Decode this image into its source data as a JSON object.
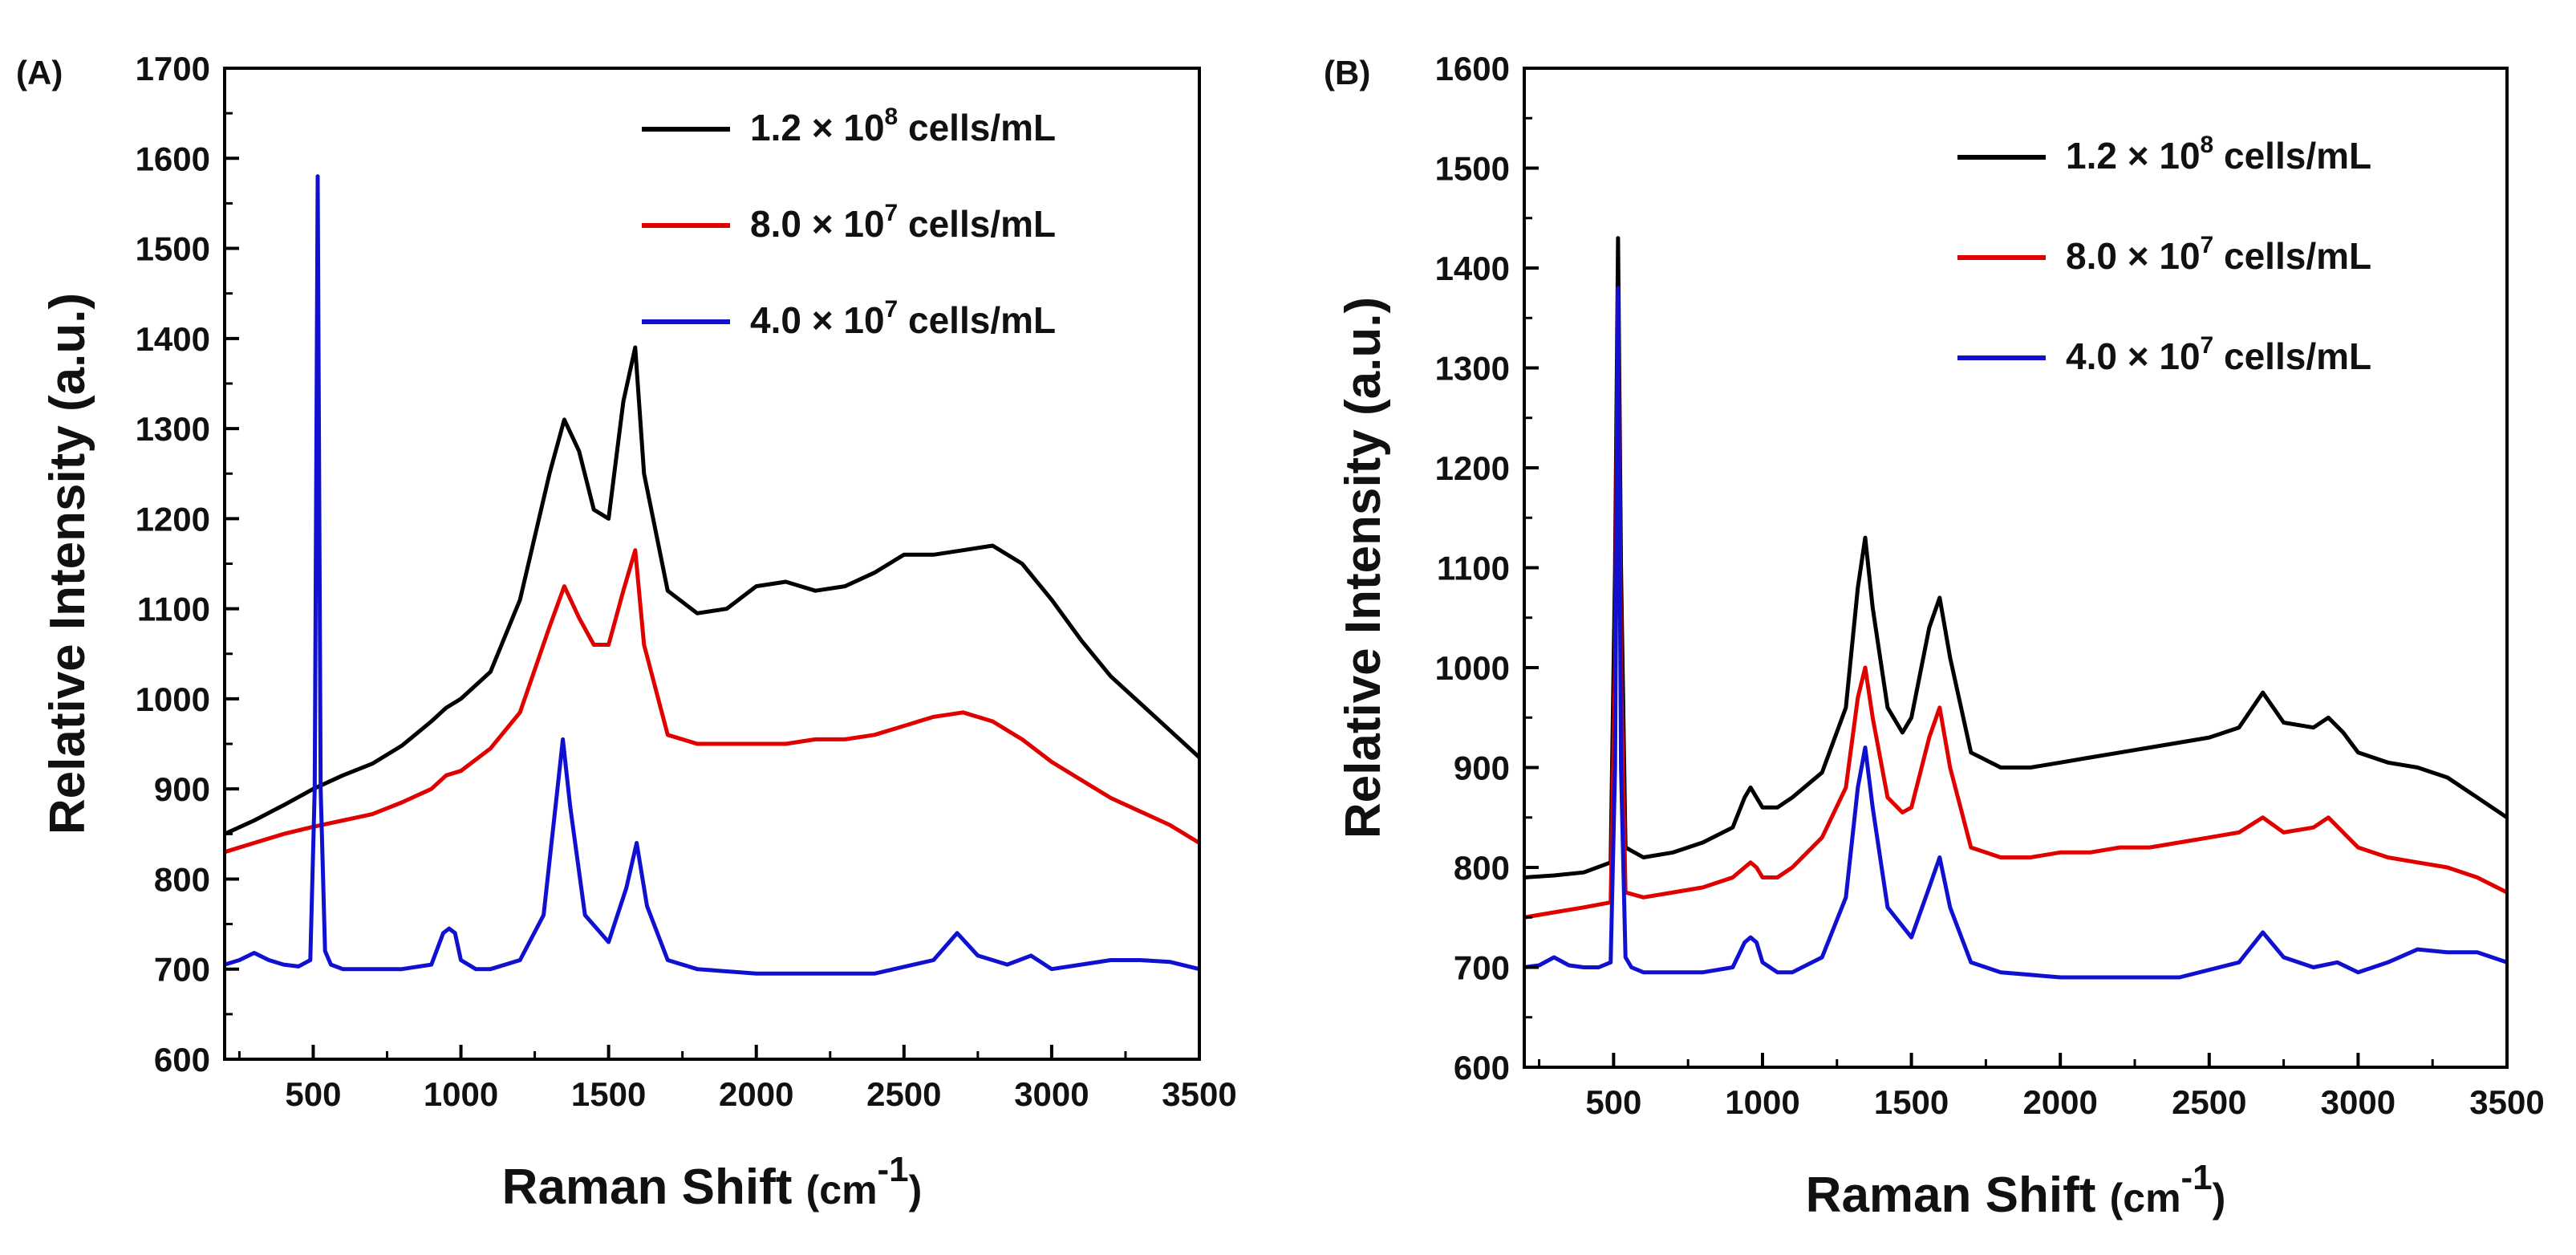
{
  "chart_data": [
    {
      "type": "line",
      "panel_label": "(A)",
      "xlabel": "Raman Shift",
      "xlabel_unit": "(cm",
      "xlabel_unit_sup": "-1",
      "xlabel_unit_close": ")",
      "ylabel": "Relative Intensity (a.u.)",
      "xlim": [
        200,
        3500
      ],
      "ylim": [
        600,
        1700
      ],
      "xticks": [
        500,
        1000,
        1500,
        2000,
        2500,
        3000,
        3500
      ],
      "yticks": [
        600,
        700,
        800,
        900,
        1000,
        1100,
        1200,
        1300,
        1400,
        1500,
        1600,
        1700
      ],
      "legend_position": "top-right",
      "series": [
        {
          "name": "1.2 × 10^8 cells/mL",
          "legend_main": "1.2 × 10",
          "legend_exp": "8",
          "legend_unit": " cells/mL",
          "color": "#000000",
          "x": [
            200,
            300,
            400,
            500,
            600,
            700,
            800,
            900,
            950,
            1000,
            1100,
            1200,
            1300,
            1350,
            1400,
            1450,
            1500,
            1550,
            1590,
            1620,
            1700,
            1800,
            1900,
            2000,
            2100,
            2200,
            2300,
            2400,
            2500,
            2600,
            2700,
            2800,
            2900,
            3000,
            3100,
            3200,
            3300,
            3400,
            3500
          ],
          "y": [
            850,
            865,
            882,
            900,
            915,
            928,
            948,
            975,
            990,
            1000,
            1030,
            1110,
            1250,
            1310,
            1275,
            1210,
            1200,
            1330,
            1390,
            1250,
            1120,
            1095,
            1100,
            1125,
            1130,
            1120,
            1125,
            1140,
            1160,
            1160,
            1165,
            1170,
            1150,
            1110,
            1065,
            1025,
            995,
            965,
            935
          ]
        },
        {
          "name": "8.0 × 10^7 cells/mL",
          "legend_main": "8.0 × 10",
          "legend_exp": "7",
          "legend_unit": " cells/mL",
          "color": "#e00000",
          "x": [
            200,
            300,
            400,
            500,
            600,
            700,
            800,
            900,
            950,
            1000,
            1100,
            1200,
            1300,
            1350,
            1400,
            1450,
            1500,
            1550,
            1590,
            1620,
            1700,
            1800,
            1900,
            2000,
            2100,
            2200,
            2300,
            2400,
            2500,
            2600,
            2700,
            2800,
            2900,
            3000,
            3100,
            3200,
            3300,
            3400,
            3500
          ],
          "y": [
            830,
            840,
            850,
            858,
            865,
            872,
            885,
            900,
            915,
            920,
            945,
            985,
            1080,
            1125,
            1090,
            1060,
            1060,
            1120,
            1165,
            1060,
            960,
            950,
            950,
            950,
            950,
            955,
            955,
            960,
            970,
            980,
            985,
            975,
            955,
            930,
            910,
            890,
            875,
            860,
            840
          ]
        },
        {
          "name": "4.0 × 10^7 cells/mL",
          "legend_main": "4.0 × 10",
          "legend_exp": "7",
          "legend_unit": " cells/mL",
          "color": "#1010d0",
          "x": [
            200,
            250,
            300,
            350,
            400,
            450,
            490,
            505,
            515,
            525,
            540,
            560,
            600,
            700,
            800,
            900,
            940,
            960,
            980,
            1000,
            1050,
            1100,
            1200,
            1280,
            1320,
            1345,
            1370,
            1420,
            1500,
            1560,
            1595,
            1630,
            1700,
            1800,
            2000,
            2200,
            2400,
            2600,
            2680,
            2750,
            2850,
            2930,
            3000,
            3100,
            3200,
            3300,
            3400,
            3500
          ],
          "y": [
            705,
            710,
            718,
            710,
            705,
            703,
            710,
            900,
            1580,
            900,
            720,
            705,
            700,
            700,
            700,
            705,
            740,
            745,
            740,
            710,
            700,
            700,
            710,
            760,
            880,
            955,
            880,
            760,
            730,
            790,
            840,
            770,
            710,
            700,
            695,
            695,
            695,
            710,
            740,
            715,
            705,
            715,
            700,
            705,
            710,
            710,
            708,
            700
          ]
        }
      ]
    },
    {
      "type": "line",
      "panel_label": "(B)",
      "xlabel": "Raman Shift",
      "xlabel_unit": "(cm",
      "xlabel_unit_sup": "-1",
      "xlabel_unit_close": ")",
      "ylabel": "Relative Intensity (a.u.)",
      "xlim": [
        200,
        3500
      ],
      "ylim": [
        600,
        1600
      ],
      "xticks": [
        500,
        1000,
        1500,
        2000,
        2500,
        3000,
        3500
      ],
      "yticks": [
        600,
        700,
        800,
        900,
        1000,
        1100,
        1200,
        1300,
        1400,
        1500,
        1600
      ],
      "legend_position": "top-right",
      "series": [
        {
          "name": "1.2 × 10^8 cells/mL",
          "legend_main": "1.2 × 10",
          "legend_exp": "8",
          "legend_unit": " cells/mL",
          "color": "#000000",
          "x": [
            200,
            300,
            400,
            490,
            505,
            515,
            525,
            540,
            600,
            700,
            800,
            900,
            940,
            960,
            980,
            1000,
            1050,
            1100,
            1200,
            1280,
            1320,
            1345,
            1370,
            1420,
            1470,
            1500,
            1560,
            1595,
            1630,
            1700,
            1800,
            1900,
            2000,
            2100,
            2200,
            2300,
            2400,
            2500,
            2600,
            2680,
            2750,
            2850,
            2900,
            2950,
            3000,
            3100,
            3200,
            3300,
            3400,
            3500
          ],
          "y": [
            790,
            792,
            795,
            805,
            1100,
            1430,
            1100,
            820,
            810,
            815,
            825,
            840,
            870,
            880,
            870,
            860,
            860,
            870,
            895,
            960,
            1080,
            1130,
            1060,
            960,
            935,
            950,
            1040,
            1070,
            1010,
            915,
            900,
            900,
            905,
            910,
            915,
            920,
            925,
            930,
            940,
            975,
            945,
            940,
            950,
            935,
            915,
            905,
            900,
            890,
            870,
            850
          ]
        },
        {
          "name": "8.0 × 10^7 cells/mL",
          "legend_main": "8.0 × 10",
          "legend_exp": "7",
          "legend_unit": " cells/mL",
          "color": "#e00000",
          "x": [
            200,
            300,
            400,
            490,
            505,
            515,
            525,
            540,
            600,
            700,
            800,
            900,
            940,
            960,
            980,
            1000,
            1050,
            1100,
            1200,
            1280,
            1320,
            1345,
            1370,
            1420,
            1470,
            1500,
            1560,
            1595,
            1630,
            1700,
            1800,
            1900,
            2000,
            2100,
            2200,
            2300,
            2400,
            2500,
            2600,
            2680,
            2750,
            2850,
            2900,
            2950,
            3000,
            3100,
            3200,
            3300,
            3400,
            3500
          ],
          "y": [
            750,
            755,
            760,
            765,
            1000,
            1380,
            1000,
            775,
            770,
            775,
            780,
            790,
            800,
            805,
            800,
            790,
            790,
            800,
            830,
            880,
            970,
            1000,
            950,
            870,
            855,
            860,
            930,
            960,
            900,
            820,
            810,
            810,
            815,
            815,
            820,
            820,
            825,
            830,
            835,
            850,
            835,
            840,
            850,
            835,
            820,
            810,
            805,
            800,
            790,
            775
          ]
        },
        {
          "name": "4.0 × 10^7 cells/mL",
          "legend_main": "4.0 × 10",
          "legend_exp": "7",
          "legend_unit": " cells/mL",
          "color": "#1010d0",
          "x": [
            200,
            250,
            300,
            350,
            400,
            450,
            490,
            505,
            515,
            525,
            540,
            560,
            600,
            700,
            800,
            900,
            940,
            960,
            980,
            1000,
            1050,
            1100,
            1200,
            1280,
            1320,
            1345,
            1370,
            1420,
            1500,
            1560,
            1595,
            1630,
            1700,
            1800,
            2000,
            2200,
            2400,
            2600,
            2680,
            2750,
            2850,
            2930,
            3000,
            3100,
            3200,
            3300,
            3400,
            3500
          ],
          "y": [
            700,
            702,
            710,
            702,
            700,
            700,
            705,
            900,
            1380,
            900,
            710,
            700,
            695,
            695,
            695,
            700,
            725,
            730,
            725,
            705,
            695,
            695,
            710,
            770,
            880,
            920,
            860,
            760,
            730,
            780,
            810,
            760,
            705,
            695,
            690,
            690,
            690,
            705,
            735,
            710,
            700,
            705,
            695,
            705,
            718,
            715,
            715,
            705
          ]
        }
      ]
    }
  ]
}
